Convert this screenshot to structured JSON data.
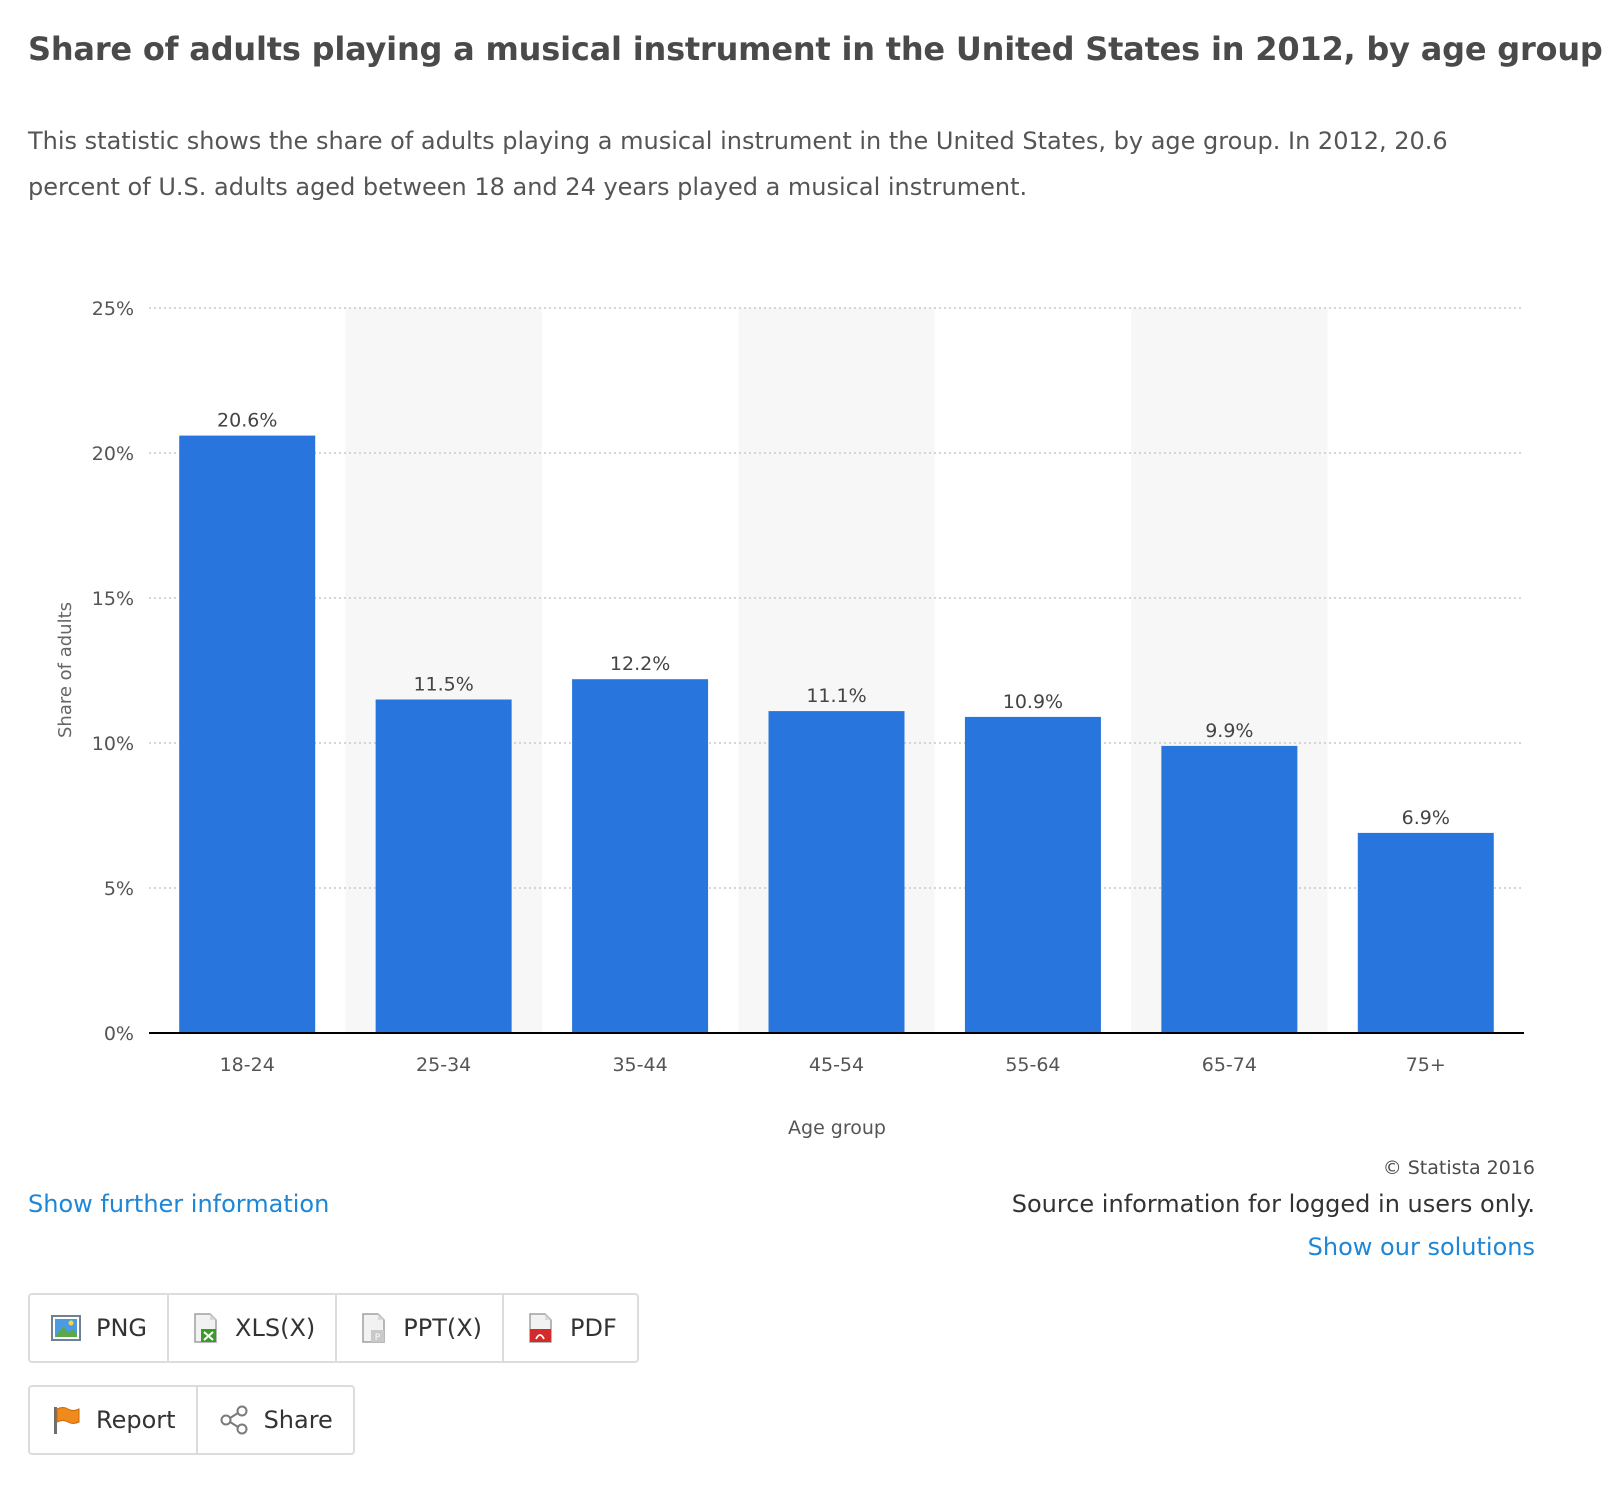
{
  "header": {
    "title": "Share of adults playing a musical instrument in the United States in 2012, by age group",
    "description": "This statistic shows the share of adults playing a musical instrument in the United States, by age group. In 2012, 20.6 percent of U.S. adults aged between 18 and 24 years played a musical instrument."
  },
  "chart_data": {
    "type": "bar",
    "categories": [
      "18-24",
      "25-34",
      "35-44",
      "45-54",
      "55-64",
      "65-74",
      "75+"
    ],
    "values": [
      20.6,
      11.5,
      12.2,
      11.1,
      10.9,
      9.9,
      6.9
    ],
    "data_labels": [
      "20.6%",
      "11.5%",
      "12.2%",
      "11.1%",
      "10.9%",
      "9.9%",
      "6.9%"
    ],
    "y_ticks": [
      0,
      5,
      10,
      15,
      20,
      25
    ],
    "y_tick_labels": [
      "0%",
      "5%",
      "10%",
      "15%",
      "20%",
      "25%"
    ],
    "xlabel": "Age group",
    "ylabel": "Share of adults",
    "ylim": [
      0,
      25
    ],
    "grid": true,
    "alternating_column_shading": true,
    "colors": {
      "bar": "#2876dd",
      "grid": "#c8c8c8",
      "shade": "#f7f7f7",
      "axis": "#000000",
      "text": "#555555"
    }
  },
  "footer": {
    "copyright": "© Statista 2016",
    "further_info": "Show further information",
    "source_note": "Source information for logged in users only.",
    "solutions": "Show our solutions"
  },
  "export_buttons": [
    {
      "label": "PNG",
      "icon": "png-file-icon"
    },
    {
      "label": "XLS(X)",
      "icon": "xls-file-icon"
    },
    {
      "label": "PPT(X)",
      "icon": "ppt-file-icon"
    },
    {
      "label": "PDF",
      "icon": "pdf-file-icon"
    }
  ],
  "action_buttons": [
    {
      "label": "Report",
      "icon": "flag-icon"
    },
    {
      "label": "Share",
      "icon": "share-icon"
    }
  ]
}
